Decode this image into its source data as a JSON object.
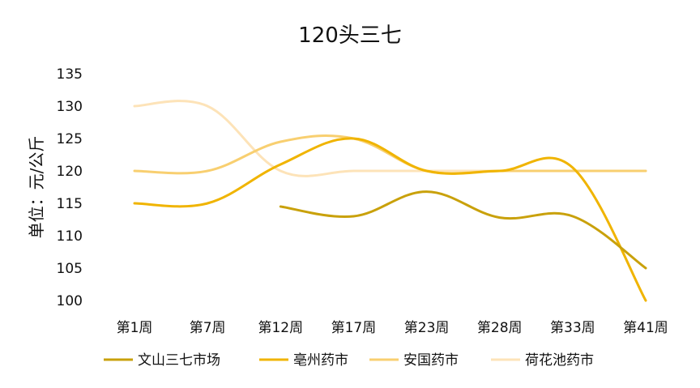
{
  "chart_data": {
    "type": "line",
    "title": "120头三七",
    "xlabel": "",
    "ylabel": "单位：元/公斤",
    "categories": [
      "第1周",
      "第7周",
      "第12周",
      "第17周",
      "第23周",
      "第28周",
      "第33周",
      "第41周"
    ],
    "ylim": [
      100,
      135
    ],
    "yticks": [
      100,
      105,
      110,
      115,
      120,
      125,
      130,
      135
    ],
    "grid": false,
    "legend_position": "bottom",
    "series": [
      {
        "name": "文山三七市场",
        "color": "#c9a10b",
        "values": [
          null,
          null,
          114.5,
          113,
          116.8,
          112.8,
          113,
          105
        ]
      },
      {
        "name": "亳州药市",
        "color": "#f0b400",
        "values": [
          115,
          115,
          121,
          125,
          120,
          120,
          120.5,
          100
        ]
      },
      {
        "name": "安国药市",
        "color": "#f8cf70",
        "values": [
          120,
          120,
          124.5,
          125,
          120,
          120,
          120,
          120
        ]
      },
      {
        "name": "荷花池药市",
        "color": "#fde3b8",
        "values": [
          130,
          130,
          120,
          120,
          120,
          120,
          120,
          120
        ]
      }
    ]
  }
}
